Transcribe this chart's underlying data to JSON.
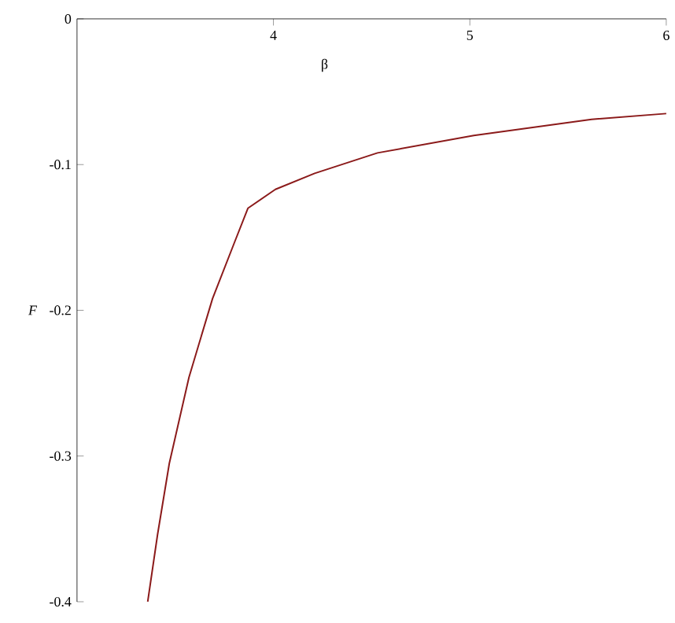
{
  "chart_data": {
    "type": "line",
    "xlabel": "β",
    "ylabel": "*F*",
    "x": [
      3.36,
      3.41,
      3.47,
      3.57,
      3.69,
      3.8,
      3.87,
      4.01,
      4.21,
      4.53,
      5.02,
      5.62,
      6.0
    ],
    "series": [
      {
        "color": "#8b1a1a",
        "values": [
          -0.4,
          -0.354,
          -0.305,
          -0.246,
          -0.192,
          -0.154,
          -0.13,
          -0.117,
          -0.106,
          -0.092,
          -0.08,
          -0.069,
          -0.065
        ]
      }
    ],
    "xlim": [
      3,
      6
    ],
    "ylim": [
      -0.4,
      0
    ],
    "xticks": [
      4,
      5,
      6
    ],
    "yticks": [
      {
        "value": -0.4,
        "label": "-0.4"
      },
      {
        "value": -0.3,
        "label": "-0.3"
      },
      {
        "value": -0.2,
        "label": "-0.2"
      },
      {
        "value": -0.1,
        "label": "-0.1"
      },
      0
    ],
    "grid": false,
    "marker": "none",
    "line_style": "solid"
  }
}
